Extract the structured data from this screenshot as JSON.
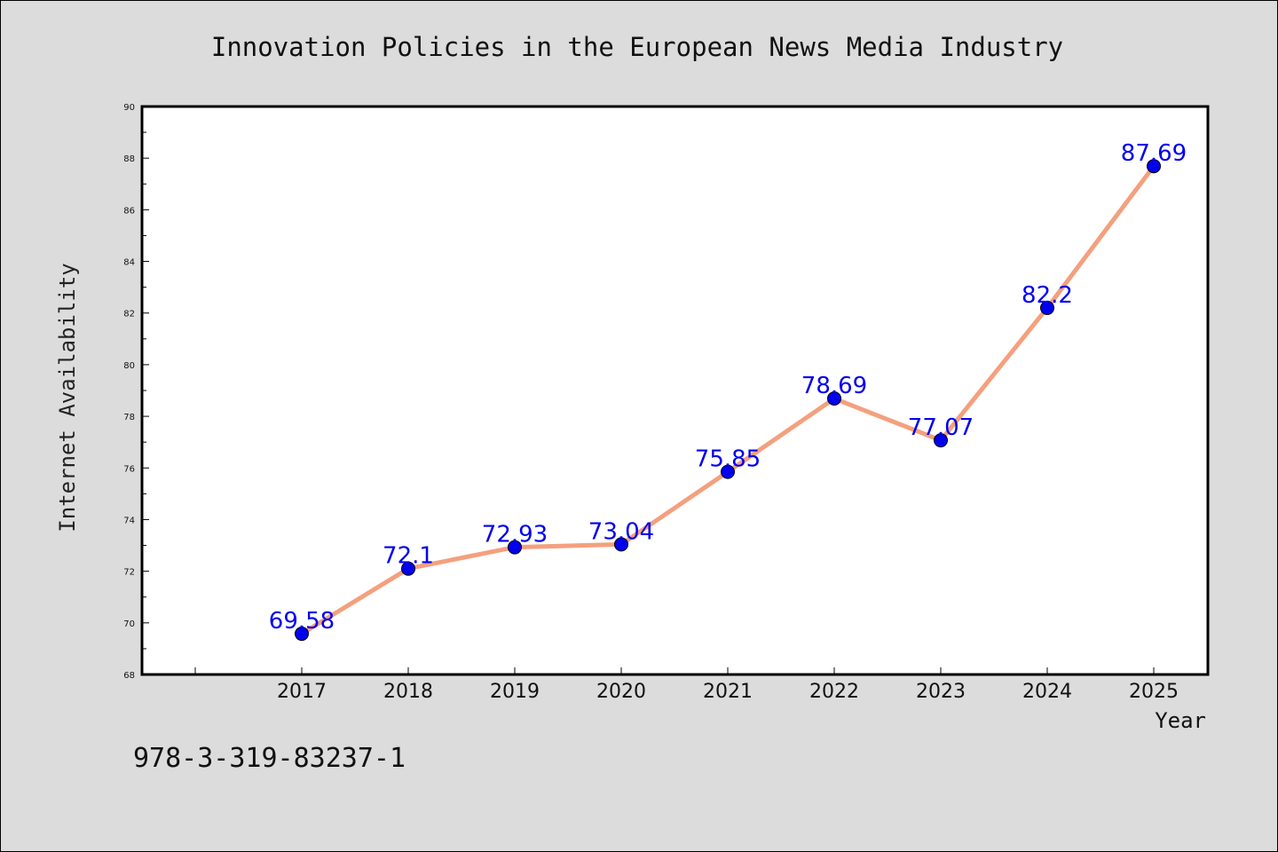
{
  "footer_text": "978-3-319-83237-1",
  "chart_data": {
    "type": "line",
    "title": "Innovation Policies in the European News Media Industry",
    "xlabel": "Year",
    "ylabel": "Internet Availability",
    "x": [
      "2017",
      "2018",
      "2019",
      "2020",
      "2021",
      "2022",
      "2023",
      "2024",
      "2025"
    ],
    "values": [
      69.58,
      72.1,
      72.93,
      73.04,
      75.85,
      78.69,
      77.07,
      82.2,
      87.69
    ],
    "ylim": [
      68,
      90
    ],
    "yticks": [
      68,
      70,
      72,
      74,
      76,
      78,
      80,
      82,
      84,
      86,
      88,
      90
    ],
    "grid": false,
    "legend": "none",
    "colors": {
      "line": "#f4a07e",
      "marker": "#0000ee",
      "data_label": "#0000ee",
      "background": "#dcdcdc",
      "plot_background": "#ffffff"
    }
  }
}
